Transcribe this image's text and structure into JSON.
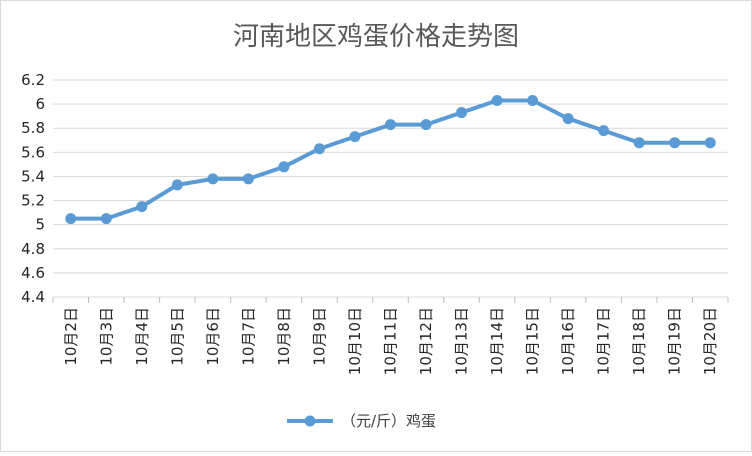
{
  "chart_data": {
    "type": "line",
    "title": "河南地区鸡蛋价格走势图",
    "categories": [
      "10月2日",
      "10月3日",
      "10月4日",
      "10月5日",
      "10月6日",
      "10月7日",
      "10月8日",
      "10月9日",
      "10月10日",
      "10月11日",
      "10月12日",
      "10月13日",
      "10月14日",
      "10月15日",
      "10月16日",
      "10月17日",
      "10月18日",
      "10月19日",
      "10月20日"
    ],
    "series": [
      {
        "name": "（元/斤）鸡蛋",
        "values": [
          5.05,
          5.05,
          5.15,
          5.33,
          5.38,
          5.38,
          5.48,
          5.63,
          5.73,
          5.83,
          5.83,
          5.93,
          6.03,
          6.03,
          5.88,
          5.78,
          5.68,
          5.68,
          5.68
        ],
        "color": "#5b9bd5"
      }
    ],
    "ylim": [
      4.4,
      6.2
    ],
    "yticks": [
      4.4,
      4.6,
      4.8,
      5,
      5.2,
      5.4,
      5.6,
      5.8,
      6,
      6.2
    ],
    "ytick_labels": [
      "4.4",
      "4.6",
      "4.8",
      "5",
      "5.2",
      "5.4",
      "5.6",
      "5.8",
      "6",
      "6.2"
    ],
    "grid": true,
    "legend_position": "bottom"
  }
}
